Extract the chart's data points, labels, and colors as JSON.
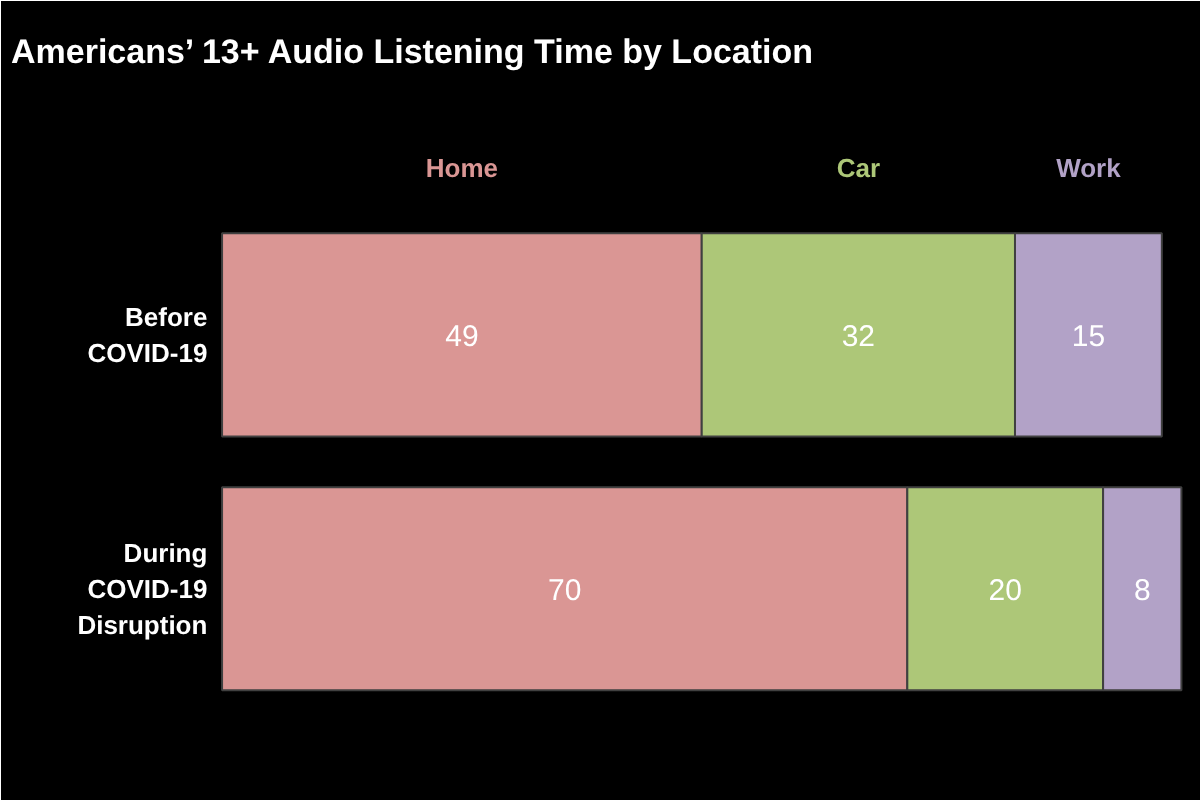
{
  "chart_data": {
    "type": "bar",
    "orientation": "horizontal",
    "stacked": true,
    "data_labels": true,
    "legend": "top",
    "title": "Americans’ 13+ Audio Listening Time by Location",
    "categories": [
      "Before COVID-19",
      "During COVID-19 Disruption"
    ],
    "series": [
      {
        "name": "Home",
        "color": "#da9694",
        "values": [
          49,
          70
        ]
      },
      {
        "name": "Car",
        "color": "#adc778",
        "values": [
          32,
          20
        ]
      },
      {
        "name": "Work",
        "color": "#b2a2c7",
        "values": [
          15,
          8
        ]
      }
    ]
  }
}
